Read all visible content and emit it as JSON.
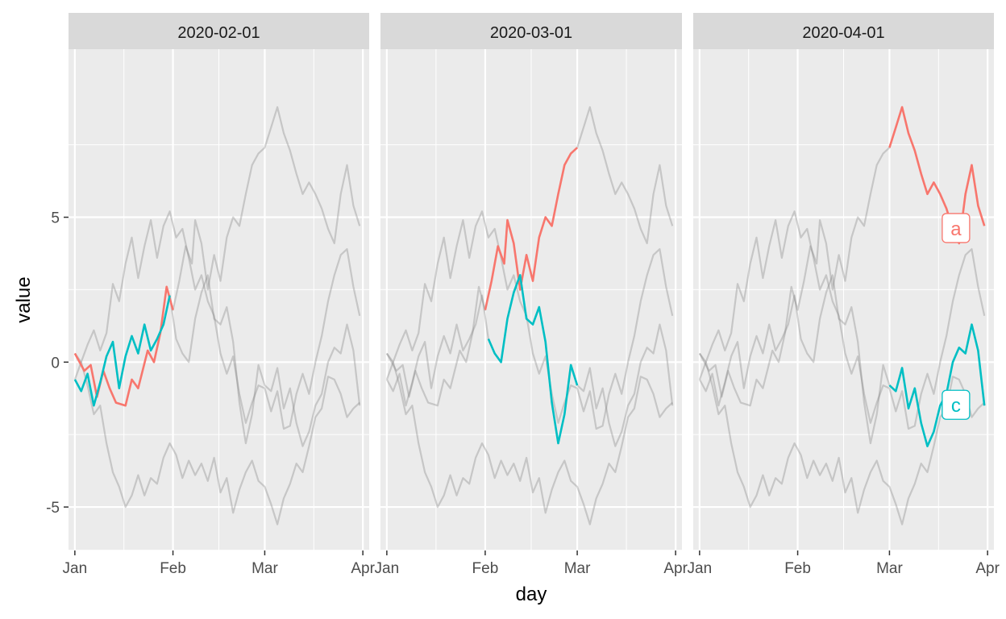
{
  "chart_data": {
    "type": "line",
    "xlabel": "day",
    "ylabel": "value",
    "xlim": [
      "2019-12-30",
      "2020-04-03"
    ],
    "ylim": [
      -6.5,
      10.8
    ],
    "x_ticks": [
      {
        "date": "2020-01-01",
        "label": "Jan"
      },
      {
        "date": "2020-02-01",
        "label": "Feb"
      },
      {
        "date": "2020-03-01",
        "label": "Mar"
      },
      {
        "date": "2020-04-01",
        "label": "Apr"
      }
    ],
    "y_ticks": [
      {
        "value": -5,
        "label": "-5"
      },
      {
        "value": 0,
        "label": "0"
      },
      {
        "value": 5,
        "label": "5"
      }
    ],
    "grid": true,
    "colors": {
      "a": "#F8766D",
      "c": "#00BFC4",
      "background": "#808080",
      "panel": "#EBEBEB",
      "strip": "#D9D9D9"
    },
    "facets": [
      {
        "label": "2020-02-01",
        "window": [
          "2020-01-01",
          "2020-02-01"
        ],
        "end_labels": []
      },
      {
        "label": "2020-03-01",
        "window": [
          "2020-02-01",
          "2020-03-01"
        ],
        "end_labels": []
      },
      {
        "label": "2020-04-01",
        "window": [
          "2020-03-01",
          "2020-04-01"
        ],
        "end_labels": [
          {
            "series": "a",
            "text": "a",
            "date": "2020-03-22",
            "value": 4.6
          },
          {
            "series": "c",
            "text": "c",
            "date": "2020-03-22",
            "value": -1.5
          }
        ]
      }
    ],
    "series": [
      {
        "id": "a",
        "points": [
          [
            "2020-01-01",
            0.3
          ],
          [
            "2020-01-04",
            -0.3
          ],
          [
            "2020-01-06",
            -0.1
          ],
          [
            "2020-01-08",
            -1.2
          ],
          [
            "2020-01-10",
            -0.3
          ],
          [
            "2020-01-12",
            -0.9
          ],
          [
            "2020-01-14",
            -1.4
          ],
          [
            "2020-01-17",
            -1.5
          ],
          [
            "2020-01-19",
            -0.6
          ],
          [
            "2020-01-21",
            -0.9
          ],
          [
            "2020-01-24",
            0.4
          ],
          [
            "2020-01-26",
            0.0
          ],
          [
            "2020-01-28",
            1.0
          ],
          [
            "2020-01-30",
            2.6
          ],
          [
            "2020-02-01",
            1.8
          ],
          [
            "2020-02-03",
            2.8
          ],
          [
            "2020-02-05",
            4.0
          ],
          [
            "2020-02-07",
            3.4
          ],
          [
            "2020-02-08",
            4.9
          ],
          [
            "2020-02-10",
            4.1
          ],
          [
            "2020-02-12",
            2.5
          ],
          [
            "2020-02-14",
            3.7
          ],
          [
            "2020-02-16",
            2.8
          ],
          [
            "2020-02-18",
            4.3
          ],
          [
            "2020-02-20",
            5.0
          ],
          [
            "2020-02-22",
            4.7
          ],
          [
            "2020-02-24",
            5.8
          ],
          [
            "2020-02-26",
            6.8
          ],
          [
            "2020-02-28",
            7.2
          ],
          [
            "2020-03-01",
            7.4
          ],
          [
            "2020-03-03",
            8.1
          ],
          [
            "2020-03-05",
            8.8
          ],
          [
            "2020-03-07",
            7.9
          ],
          [
            "2020-03-09",
            7.3
          ],
          [
            "2020-03-11",
            6.5
          ],
          [
            "2020-03-13",
            5.8
          ],
          [
            "2020-03-15",
            6.2
          ],
          [
            "2020-03-17",
            5.8
          ],
          [
            "2020-03-19",
            5.3
          ],
          [
            "2020-03-21",
            4.6
          ],
          [
            "2020-03-23",
            4.1
          ],
          [
            "2020-03-25",
            5.8
          ],
          [
            "2020-03-27",
            6.8
          ],
          [
            "2020-03-29",
            5.4
          ],
          [
            "2020-03-31",
            4.7
          ]
        ]
      },
      {
        "id": "b",
        "points": [
          [
            "2020-01-01",
            -0.6
          ],
          [
            "2020-01-03",
            0.0
          ],
          [
            "2020-01-05",
            0.6
          ],
          [
            "2020-01-07",
            1.1
          ],
          [
            "2020-01-09",
            0.4
          ],
          [
            "2020-01-11",
            1.0
          ],
          [
            "2020-01-13",
            2.7
          ],
          [
            "2020-01-15",
            2.1
          ],
          [
            "2020-01-17",
            3.4
          ],
          [
            "2020-01-19",
            4.3
          ],
          [
            "2020-01-21",
            2.9
          ],
          [
            "2020-01-23",
            4.0
          ],
          [
            "2020-01-25",
            4.9
          ],
          [
            "2020-01-27",
            3.6
          ],
          [
            "2020-01-29",
            4.7
          ],
          [
            "2020-01-31",
            5.2
          ],
          [
            "2020-02-02",
            4.3
          ],
          [
            "2020-02-04",
            4.6
          ],
          [
            "2020-02-06",
            3.6
          ],
          [
            "2020-02-08",
            2.5
          ],
          [
            "2020-02-10",
            3.0
          ],
          [
            "2020-02-12",
            2.1
          ],
          [
            "2020-02-14",
            1.6
          ],
          [
            "2020-02-16",
            0.3
          ],
          [
            "2020-02-18",
            -0.4
          ],
          [
            "2020-02-20",
            0.2
          ],
          [
            "2020-02-22",
            -1.1
          ],
          [
            "2020-02-24",
            -2.1
          ],
          [
            "2020-02-26",
            -1.4
          ],
          [
            "2020-02-28",
            -0.8
          ],
          [
            "2020-03-01",
            -0.9
          ],
          [
            "2020-03-03",
            -1.7
          ],
          [
            "2020-03-05",
            -1.0
          ],
          [
            "2020-03-07",
            -2.3
          ],
          [
            "2020-03-09",
            -2.2
          ],
          [
            "2020-03-11",
            -1.1
          ],
          [
            "2020-03-13",
            -0.4
          ],
          [
            "2020-03-15",
            -1.1
          ],
          [
            "2020-03-17",
            0.0
          ],
          [
            "2020-03-19",
            0.9
          ],
          [
            "2020-03-21",
            2.1
          ],
          [
            "2020-03-23",
            3.0
          ],
          [
            "2020-03-25",
            3.7
          ],
          [
            "2020-03-27",
            3.9
          ],
          [
            "2020-03-29",
            2.6
          ],
          [
            "2020-03-31",
            1.6
          ]
        ]
      },
      {
        "id": "c",
        "points": [
          [
            "2020-01-01",
            -0.6
          ],
          [
            "2020-01-03",
            -1.0
          ],
          [
            "2020-01-05",
            -0.4
          ],
          [
            "2020-01-07",
            -1.5
          ],
          [
            "2020-01-09",
            -0.7
          ],
          [
            "2020-01-11",
            0.2
          ],
          [
            "2020-01-13",
            0.7
          ],
          [
            "2020-01-15",
            -0.9
          ],
          [
            "2020-01-17",
            0.2
          ],
          [
            "2020-01-19",
            0.9
          ],
          [
            "2020-01-21",
            0.3
          ],
          [
            "2020-01-23",
            1.3
          ],
          [
            "2020-01-25",
            0.4
          ],
          [
            "2020-01-27",
            0.8
          ],
          [
            "2020-01-29",
            1.3
          ],
          [
            "2020-01-31",
            2.3
          ],
          [
            "2020-02-02",
            0.8
          ],
          [
            "2020-02-04",
            0.3
          ],
          [
            "2020-02-06",
            0.0
          ],
          [
            "2020-02-08",
            1.5
          ],
          [
            "2020-02-10",
            2.4
          ],
          [
            "2020-02-12",
            3.0
          ],
          [
            "2020-02-14",
            1.5
          ],
          [
            "2020-02-16",
            1.3
          ],
          [
            "2020-02-18",
            1.9
          ],
          [
            "2020-02-20",
            0.7
          ],
          [
            "2020-02-22",
            -1.4
          ],
          [
            "2020-02-24",
            -2.8
          ],
          [
            "2020-02-26",
            -1.8
          ],
          [
            "2020-02-28",
            -0.1
          ],
          [
            "2020-03-01",
            -0.8
          ],
          [
            "2020-03-03",
            -1.0
          ],
          [
            "2020-03-05",
            -0.2
          ],
          [
            "2020-03-07",
            -1.6
          ],
          [
            "2020-03-09",
            -0.9
          ],
          [
            "2020-03-11",
            -2.1
          ],
          [
            "2020-03-13",
            -2.9
          ],
          [
            "2020-03-15",
            -2.4
          ],
          [
            "2020-03-17",
            -1.5
          ],
          [
            "2020-03-19",
            -1.1
          ],
          [
            "2020-03-21",
            0.0
          ],
          [
            "2020-03-23",
            0.5
          ],
          [
            "2020-03-25",
            0.3
          ],
          [
            "2020-03-27",
            1.3
          ],
          [
            "2020-03-29",
            0.4
          ],
          [
            "2020-03-31",
            -1.5
          ]
        ]
      },
      {
        "id": "d",
        "points": [
          [
            "2020-01-01",
            0.3
          ],
          [
            "2020-01-03",
            0.0
          ],
          [
            "2020-01-05",
            -0.8
          ],
          [
            "2020-01-07",
            -1.8
          ],
          [
            "2020-01-09",
            -1.5
          ],
          [
            "2020-01-11",
            -2.8
          ],
          [
            "2020-01-13",
            -3.8
          ],
          [
            "2020-01-15",
            -4.3
          ],
          [
            "2020-01-17",
            -5.0
          ],
          [
            "2020-01-19",
            -4.6
          ],
          [
            "2020-01-21",
            -3.9
          ],
          [
            "2020-01-23",
            -4.6
          ],
          [
            "2020-01-25",
            -4.0
          ],
          [
            "2020-01-27",
            -4.2
          ],
          [
            "2020-01-29",
            -3.3
          ],
          [
            "2020-01-31",
            -2.8
          ],
          [
            "2020-02-02",
            -3.2
          ],
          [
            "2020-02-04",
            -4.0
          ],
          [
            "2020-02-06",
            -3.4
          ],
          [
            "2020-02-08",
            -3.9
          ],
          [
            "2020-02-10",
            -3.5
          ],
          [
            "2020-02-12",
            -4.1
          ],
          [
            "2020-02-14",
            -3.3
          ],
          [
            "2020-02-16",
            -4.5
          ],
          [
            "2020-02-18",
            -4.0
          ],
          [
            "2020-02-20",
            -5.2
          ],
          [
            "2020-02-22",
            -4.4
          ],
          [
            "2020-02-24",
            -3.8
          ],
          [
            "2020-02-26",
            -3.4
          ],
          [
            "2020-02-28",
            -4.1
          ],
          [
            "2020-03-01",
            -4.3
          ],
          [
            "2020-03-03",
            -4.9
          ],
          [
            "2020-03-05",
            -5.6
          ],
          [
            "2020-03-07",
            -4.7
          ],
          [
            "2020-03-09",
            -4.2
          ],
          [
            "2020-03-11",
            -3.5
          ],
          [
            "2020-03-13",
            -3.8
          ],
          [
            "2020-03-15",
            -2.9
          ],
          [
            "2020-03-17",
            -1.9
          ],
          [
            "2020-03-19",
            -1.6
          ],
          [
            "2020-03-21",
            -0.5
          ],
          [
            "2020-03-23",
            -0.6
          ],
          [
            "2020-03-25",
            -1.1
          ],
          [
            "2020-03-27",
            -1.9
          ],
          [
            "2020-03-29",
            -1.6
          ],
          [
            "2020-03-31",
            -1.4
          ]
        ]
      }
    ]
  }
}
